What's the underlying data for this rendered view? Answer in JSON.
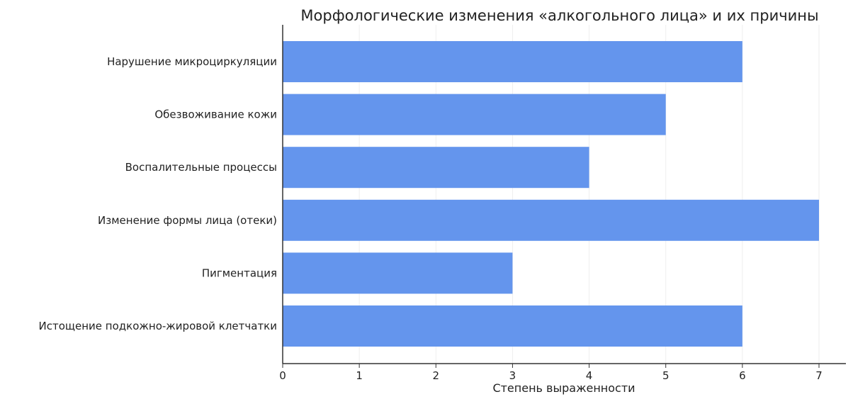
{
  "chart_data": {
    "type": "bar",
    "orientation": "horizontal",
    "title": "Морфологические изменения «алкогольного лица» и их причины",
    "xlabel": "Степень выраженности",
    "ylabel": "",
    "categories": [
      "Нарушение микроциркуляции",
      "Обезвоживание кожи",
      "Воспалительные процессы",
      "Изменение формы лица (отеки)",
      "Пигментация",
      "Истощение подкожно-жировой клетчатки"
    ],
    "values": [
      6,
      5,
      4,
      7,
      3,
      6
    ],
    "xlim": [
      0,
      7.35
    ],
    "xticks": [
      "0",
      "1",
      "2",
      "3",
      "4",
      "5",
      "6",
      "7"
    ],
    "grid": "vertical",
    "bar_color": "#6495ED"
  }
}
